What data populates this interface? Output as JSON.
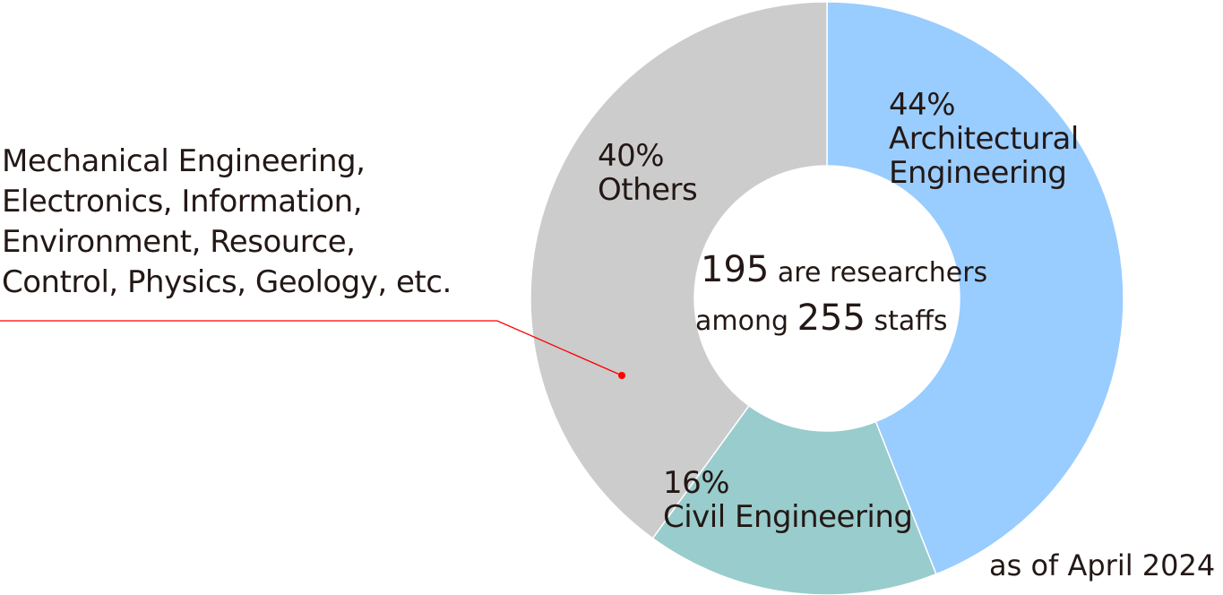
{
  "chart_data": {
    "type": "pie",
    "variant": "donut",
    "slices": [
      {
        "name": "Architectural Engineering",
        "label_line1": "44%",
        "label_line2": "Architectural",
        "label_line3": "Engineering",
        "value": 44,
        "color": "#99ccff"
      },
      {
        "name": "Civil Engineering",
        "label_line1": "16%",
        "label_line2": "Civil Engineering",
        "value": 16,
        "color": "#99cccc"
      },
      {
        "name": "Others",
        "label_line1": "40%",
        "label_line2": "Others",
        "value": 40,
        "color": "#cccccc"
      }
    ],
    "center": {
      "num1": "195",
      "text1": "are researchers",
      "text2": "among",
      "num2": "255",
      "text3": "staffs"
    },
    "others_description": [
      "Mechanical Engineering,",
      "Electronics, Information,",
      "Environment, Resource,",
      "Control, Physics, Geology,  etc."
    ],
    "note": "as of April 2024",
    "callout_color": "#ff0000"
  }
}
